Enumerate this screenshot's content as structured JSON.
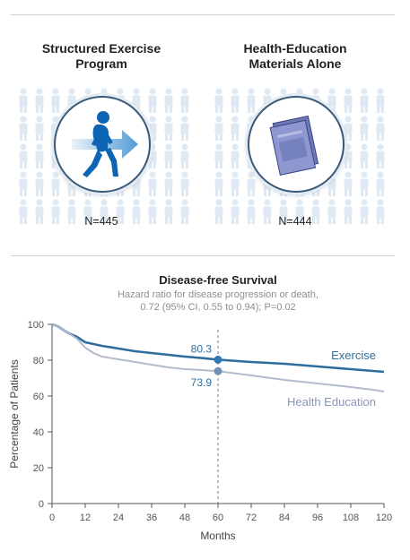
{
  "arms": [
    {
      "title_line1": "Structured Exercise",
      "title_line2": "Program",
      "n_label": "N=445",
      "icon": "walking-person-icon"
    },
    {
      "title_line1": "Health-Education",
      "title_line2": "Materials Alone",
      "n_label": "N=444",
      "icon": "booklet-icon"
    }
  ],
  "colors": {
    "exercise": "#2e6e9c",
    "health_education": "#b3b9cf",
    "marker": "#7391b5",
    "axis": "#555555",
    "background_figures": "#dfe9f3"
  },
  "chart_data": {
    "type": "line",
    "title": "Disease-free Survival",
    "subtitle_line1": "Hazard ratio for disease progression or death,",
    "subtitle_line2": "0.72 (95% CI, 0.55 to 0.94); P=0.02",
    "xlabel": "Months",
    "ylabel": "Percentage of Patients",
    "xlim": [
      0,
      120
    ],
    "ylim": [
      0,
      100
    ],
    "xticks": [
      0,
      12,
      24,
      36,
      48,
      60,
      72,
      84,
      96,
      108,
      120
    ],
    "yticks": [
      0,
      20,
      40,
      60,
      80,
      100
    ],
    "grid": false,
    "reference_line_x": 60,
    "series": [
      {
        "name": "Exercise",
        "x": [
          0,
          2,
          4,
          6,
          9,
          12,
          15,
          18,
          24,
          30,
          36,
          42,
          48,
          54,
          60,
          72,
          84,
          96,
          108,
          116,
          120
        ],
        "y": [
          100,
          99,
          97,
          95,
          93,
          90,
          89,
          88,
          86.5,
          85,
          84,
          83,
          82,
          81.2,
          80.3,
          79,
          78,
          76.5,
          75,
          74,
          73.5
        ],
        "annotation": {
          "x": 60,
          "y": 80.3,
          "label": "80.3"
        }
      },
      {
        "name": "Health Education",
        "x": [
          0,
          2,
          4,
          6,
          9,
          12,
          15,
          18,
          24,
          30,
          36,
          42,
          48,
          54,
          60,
          72,
          84,
          96,
          108,
          116,
          120
        ],
        "y": [
          100,
          99,
          97,
          95,
          92,
          87,
          84,
          82,
          80.5,
          79,
          77.5,
          76,
          75,
          74.5,
          73.9,
          71.5,
          69,
          67,
          65,
          63.5,
          62.5
        ],
        "annotation": {
          "x": 60,
          "y": 73.9,
          "label": "73.9"
        }
      }
    ]
  }
}
